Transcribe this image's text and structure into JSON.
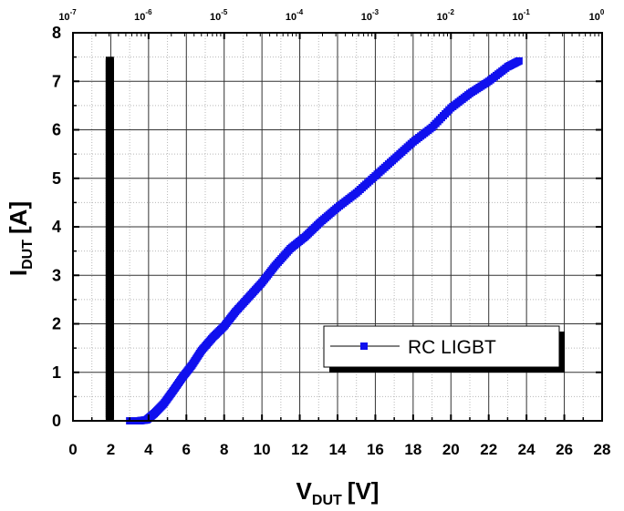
{
  "chart_data": {
    "type": "scatter",
    "title": "",
    "xlabel": {
      "main": "V",
      "sub": "DUT",
      "unit": "[V]"
    },
    "ylabel": {
      "main": "I",
      "sub": "DUT",
      "unit": "[A]"
    },
    "xlim": [
      0,
      28
    ],
    "ylim": [
      0,
      8
    ],
    "x_ticks": [
      "0",
      "2",
      "4",
      "6",
      "8",
      "10",
      "12",
      "14",
      "16",
      "18",
      "20",
      "22",
      "24",
      "26",
      "28"
    ],
    "y_ticks": [
      "0",
      "1",
      "2",
      "3",
      "4",
      "5",
      "6",
      "7",
      "8"
    ],
    "top_axis": {
      "scale": "log",
      "range": [
        1e-07,
        1
      ],
      "ticks": [
        {
          "base": "10",
          "exp": "-7"
        },
        {
          "base": "10",
          "exp": "-6"
        },
        {
          "base": "10",
          "exp": "-5"
        },
        {
          "base": "10",
          "exp": "-4"
        },
        {
          "base": "10",
          "exp": "-3"
        },
        {
          "base": "10",
          "exp": "-2"
        },
        {
          "base": "10",
          "exp": "-1"
        },
        {
          "base": "10",
          "exp": "0"
        }
      ]
    },
    "grid": true,
    "legend": {
      "position": "lower-right",
      "entries": [
        "RC LIGBT"
      ]
    },
    "series": [
      {
        "name": "RC LIGBT",
        "color": "#1010ee",
        "marker": "square",
        "points": [
          [
            3.0,
            0.0
          ],
          [
            3.5,
            0.0
          ],
          [
            3.9,
            0.02
          ],
          [
            4.3,
            0.15
          ],
          [
            4.8,
            0.35
          ],
          [
            5.3,
            0.62
          ],
          [
            5.8,
            0.9
          ],
          [
            6.3,
            1.15
          ],
          [
            6.8,
            1.45
          ],
          [
            7.4,
            1.72
          ],
          [
            8.0,
            1.95
          ],
          [
            8.6,
            2.25
          ],
          [
            9.3,
            2.55
          ],
          [
            10.0,
            2.85
          ],
          [
            10.7,
            3.2
          ],
          [
            11.5,
            3.55
          ],
          [
            12.3,
            3.8
          ],
          [
            13.1,
            4.1
          ],
          [
            14.0,
            4.4
          ],
          [
            15.0,
            4.7
          ],
          [
            16.0,
            5.05
          ],
          [
            17.0,
            5.4
          ],
          [
            18.0,
            5.75
          ],
          [
            19.0,
            6.05
          ],
          [
            20.0,
            6.45
          ],
          [
            21.0,
            6.75
          ],
          [
            22.0,
            7.0
          ],
          [
            23.0,
            7.3
          ],
          [
            23.6,
            7.42
          ]
        ]
      },
      {
        "name": "",
        "color": "#000000",
        "marker": "square",
        "x": 1.95,
        "y_range": [
          0.05,
          7.45
        ]
      }
    ]
  }
}
